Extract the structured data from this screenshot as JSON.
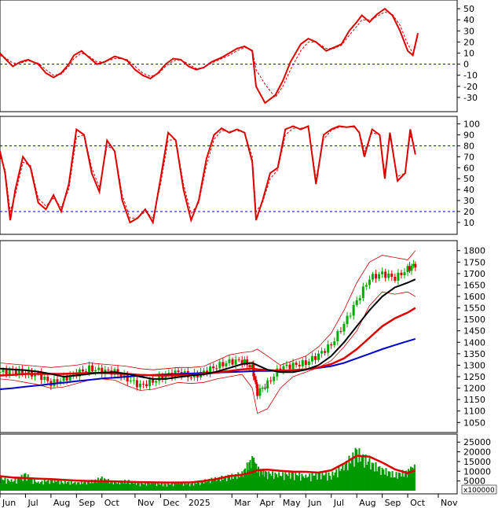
{
  "colors": {
    "background": "#ffffff",
    "axis": "#000000",
    "reference_line": "#0000cc",
    "main_line": "#dd0000",
    "signal_line": "#dd0000",
    "candle_up": "#00aa00",
    "candle_down": "#dd0000",
    "ma_short": "#000000",
    "ma_mid": "#dd0000",
    "ma_long": "#0000cc",
    "bollinger": "#cc0000",
    "volume_bar": "#009900",
    "volume_ma": "#dd0000"
  },
  "x_axis": {
    "labels": [
      "Jun",
      "Jul",
      "Aug",
      "Sep",
      "Oct",
      "Nov",
      "Dec",
      "2025",
      "Mar",
      "Apr",
      "May",
      "Jun",
      "Jul",
      "Aug",
      "Sep",
      "Oct",
      "Nov"
    ],
    "positions": [
      0,
      1,
      2,
      3,
      4,
      5.3,
      6.3,
      7.3,
      9.1,
      10.1,
      11,
      12,
      13,
      14,
      15,
      16,
      17.2
    ]
  },
  "chart_data": [
    {
      "type": "line",
      "panel": "oscillator-top",
      "ylim": [
        -40,
        55
      ],
      "y_ticks": [
        50,
        40,
        30,
        20,
        10,
        0,
        -10,
        -20,
        -30
      ],
      "reference_lines": [
        0
      ],
      "x": [
        0,
        0.2,
        0.5,
        0.8,
        1.1,
        1.5,
        1.8,
        2.1,
        2.4,
        2.7,
        2.9,
        3.2,
        3.5,
        3.8,
        4.1,
        4.5,
        4.8,
        5.0,
        5.3,
        5.6,
        5.9,
        6.2,
        6.5,
        6.8,
        7.1,
        7.4,
        7.7,
        8.0,
        8.3,
        8.7,
        9.0,
        9.3,
        9.6,
        9.9,
        10.05,
        10.4,
        10.8,
        11.1,
        11.4,
        11.8,
        12.1,
        12.4,
        12.8,
        13.1,
        13.4,
        13.7,
        14.0,
        14.2,
        14.5,
        14.8,
        15.1,
        15.4,
        15.7,
        16.0,
        16.2,
        16.4
      ],
      "series": [
        {
          "values": [
            10,
            5,
            -2,
            2,
            4,
            0,
            -8,
            -12,
            -8,
            0,
            8,
            12,
            6,
            0,
            2,
            7,
            5,
            3,
            -5,
            -10,
            -13,
            -8,
            0,
            5,
            4,
            -2,
            -5,
            -3,
            2,
            6,
            10,
            14,
            16,
            12,
            -20,
            -35,
            -28,
            -15,
            2,
            18,
            23,
            20,
            12,
            15,
            18,
            30,
            38,
            44,
            38,
            45,
            50,
            44,
            30,
            12,
            8,
            28
          ]
        },
        {
          "values": [
            8,
            6,
            1,
            1,
            3,
            1,
            -5,
            -10,
            -9,
            -2,
            5,
            10,
            7,
            2,
            2,
            5,
            5,
            4,
            -2,
            -8,
            -11,
            -9,
            -2,
            3,
            4,
            0,
            -4,
            -3,
            1,
            5,
            8,
            12,
            15,
            13,
            -5,
            -18,
            -30,
            -20,
            -5,
            12,
            20,
            20,
            14,
            14,
            17,
            26,
            34,
            40,
            40,
            43,
            47,
            45,
            35,
            18,
            10,
            25
          ]
        }
      ]
    },
    {
      "type": "line",
      "panel": "oscillator-middle",
      "ylim": [
        2,
        104
      ],
      "y_ticks": [
        100,
        90,
        80,
        70,
        60,
        50,
        40,
        30,
        20,
        10
      ],
      "reference_lines": [
        80,
        20
      ],
      "x": [
        0,
        0.2,
        0.4,
        0.6,
        0.9,
        1.2,
        1.5,
        1.8,
        2.1,
        2.4,
        2.7,
        3.0,
        3.3,
        3.6,
        3.9,
        4.2,
        4.5,
        4.8,
        5.1,
        5.4,
        5.7,
        6.0,
        6.3,
        6.6,
        6.9,
        7.2,
        7.5,
        7.8,
        8.1,
        8.4,
        8.7,
        9.0,
        9.3,
        9.6,
        9.9,
        10.05,
        10.3,
        10.6,
        10.9,
        11.2,
        11.5,
        11.8,
        12.1,
        12.4,
        12.7,
        13.0,
        13.3,
        13.6,
        13.9,
        14.1,
        14.3,
        14.6,
        14.9,
        15.1,
        15.3,
        15.6,
        15.9,
        16.1,
        16.3
      ],
      "series": [
        {
          "values": [
            75,
            55,
            12,
            40,
            70,
            60,
            28,
            22,
            35,
            20,
            45,
            95,
            90,
            55,
            38,
            85,
            75,
            30,
            10,
            14,
            22,
            10,
            50,
            92,
            85,
            40,
            12,
            30,
            68,
            90,
            96,
            92,
            95,
            92,
            65,
            12,
            30,
            55,
            60,
            95,
            98,
            95,
            98,
            45,
            90,
            95,
            98,
            97,
            98,
            92,
            70,
            95,
            90,
            50,
            92,
            48,
            55,
            95,
            72
          ]
        },
        {
          "values": [
            70,
            58,
            20,
            35,
            65,
            62,
            32,
            25,
            32,
            24,
            40,
            88,
            90,
            60,
            42,
            80,
            76,
            35,
            14,
            14,
            20,
            14,
            45,
            85,
            86,
            45,
            18,
            28,
            62,
            86,
            94,
            93,
            94,
            92,
            70,
            20,
            28,
            50,
            58,
            90,
            96,
            96,
            97,
            50,
            86,
            94,
            97,
            97,
            97,
            93,
            75,
            92,
            90,
            55,
            88,
            52,
            55,
            90,
            75
          ]
        }
      ]
    },
    {
      "type": "candlestick",
      "panel": "price",
      "ylim": [
        1020,
        1830
      ],
      "y_ticks": [
        1800,
        1750,
        1700,
        1650,
        1600,
        1550,
        1500,
        1450,
        1400,
        1350,
        1300,
        1250,
        1200,
        1150,
        1100,
        1050
      ],
      "x": [
        0,
        0.5,
        1.0,
        1.5,
        2.0,
        2.5,
        3.0,
        3.5,
        4.0,
        4.5,
        5.0,
        5.5,
        6.0,
        6.5,
        7.0,
        7.5,
        8.0,
        8.5,
        9.0,
        9.5,
        9.9,
        10.1,
        10.5,
        11.0,
        11.5,
        12.0,
        12.5,
        13.0,
        13.5,
        14.0,
        14.5,
        15.0,
        15.5,
        16.0,
        16.3
      ],
      "series": [
        {
          "name": "close",
          "values": [
            1270,
            1275,
            1265,
            1260,
            1220,
            1240,
            1265,
            1285,
            1275,
            1270,
            1240,
            1210,
            1230,
            1255,
            1270,
            1250,
            1270,
            1295,
            1315,
            1320,
            1290,
            1180,
            1220,
            1290,
            1300,
            1310,
            1345,
            1390,
            1480,
            1580,
            1680,
            1700,
            1680,
            1720,
            1740
          ]
        },
        {
          "name": "ma_short",
          "values": [
            1285,
            1282,
            1278,
            1272,
            1262,
            1250,
            1255,
            1262,
            1268,
            1270,
            1262,
            1250,
            1240,
            1240,
            1248,
            1255,
            1260,
            1272,
            1288,
            1305,
            1310,
            1300,
            1280,
            1270,
            1270,
            1280,
            1300,
            1340,
            1400,
            1470,
            1540,
            1600,
            1640,
            1660,
            1675
          ]
        },
        {
          "name": "ma_mid",
          "values": [
            1255,
            1258,
            1262,
            1262,
            1262,
            1262,
            1264,
            1266,
            1266,
            1264,
            1262,
            1258,
            1256,
            1255,
            1256,
            1258,
            1262,
            1268,
            1275,
            1282,
            1285,
            1282,
            1278,
            1276,
            1278,
            1282,
            1290,
            1305,
            1330,
            1370,
            1420,
            1470,
            1505,
            1530,
            1550
          ]
        },
        {
          "name": "ma_long",
          "values": [
            1195,
            1200,
            1206,
            1212,
            1218,
            1224,
            1230,
            1236,
            1242,
            1246,
            1250,
            1254,
            1258,
            1260,
            1262,
            1264,
            1266,
            1268,
            1270,
            1272,
            1274,
            1275,
            1275,
            1276,
            1278,
            1282,
            1288,
            1296,
            1310,
            1330,
            1350,
            1370,
            1388,
            1405,
            1415
          ]
        },
        {
          "name": "bb_upper",
          "values": [
            1310,
            1305,
            1300,
            1295,
            1290,
            1295,
            1300,
            1310,
            1305,
            1300,
            1295,
            1285,
            1280,
            1285,
            1290,
            1290,
            1295,
            1320,
            1345,
            1355,
            1360,
            1370,
            1340,
            1300,
            1320,
            1340,
            1380,
            1440,
            1540,
            1660,
            1750,
            1780,
            1770,
            1760,
            1800
          ]
        },
        {
          "name": "bb_lower",
          "values": [
            1240,
            1235,
            1225,
            1215,
            1200,
            1205,
            1220,
            1235,
            1240,
            1235,
            1210,
            1190,
            1195,
            1210,
            1225,
            1220,
            1225,
            1240,
            1250,
            1260,
            1200,
            1090,
            1110,
            1200,
            1250,
            1270,
            1290,
            1320,
            1380,
            1450,
            1560,
            1620,
            1610,
            1620,
            1600
          ]
        }
      ]
    },
    {
      "type": "bar",
      "panel": "volume",
      "ylim": [
        0,
        27500
      ],
      "y_ticks": [
        25000,
        20000,
        15000,
        10000,
        5000
      ],
      "y_ticks_labels": [
        "25000",
        "20000",
        "15000",
        "10000",
        "5000"
      ],
      "unit_label": "x100000",
      "x": [
        0,
        0.5,
        1.0,
        1.5,
        2.0,
        2.5,
        3.0,
        3.5,
        4.0,
        4.5,
        5.0,
        5.5,
        6.0,
        6.5,
        7.0,
        7.5,
        8.0,
        8.5,
        9.0,
        9.5,
        9.9,
        10.1,
        10.5,
        11.0,
        11.5,
        12.0,
        12.5,
        13.0,
        13.5,
        14.0,
        14.5,
        15.0,
        15.5,
        16.0,
        16.3
      ],
      "series": [
        {
          "name": "volume",
          "values": [
            7000,
            5500,
            9000,
            4500,
            6500,
            5000,
            4500,
            5000,
            7000,
            4500,
            5500,
            4000,
            4500,
            3500,
            4500,
            4000,
            5500,
            7000,
            8000,
            9500,
            18000,
            12000,
            10000,
            9000,
            10000,
            8000,
            10000,
            9000,
            14000,
            22000,
            16000,
            12000,
            9000,
            11000,
            13000
          ]
        },
        {
          "name": "volume_ma",
          "values": [
            7500,
            6800,
            6500,
            6200,
            6000,
            5600,
            5200,
            5000,
            4900,
            4800,
            4600,
            4400,
            4300,
            4200,
            4200,
            4300,
            5000,
            6000,
            7500,
            8200,
            9500,
            10500,
            10800,
            10200,
            9800,
            9700,
            9300,
            10500,
            14000,
            18000,
            17500,
            14500,
            11000,
            9000,
            10500
          ]
        }
      ]
    }
  ]
}
